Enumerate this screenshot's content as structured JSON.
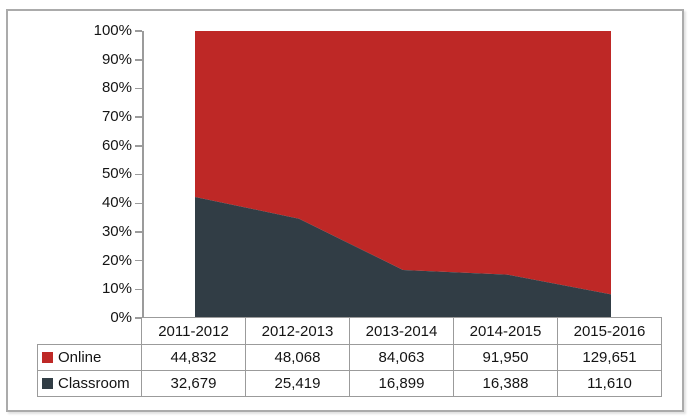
{
  "chart_data": {
    "type": "area",
    "stacked": "percent",
    "title": "",
    "categories": [
      "2011-2012",
      "2012-2013",
      "2013-2014",
      "2014-2015",
      "2015-2016"
    ],
    "series": [
      {
        "name": "Online",
        "color": "#be2826",
        "values": [
          44832,
          48068,
          84063,
          91950,
          129651
        ]
      },
      {
        "name": "Classroom",
        "color": "#313d45",
        "values": [
          32679,
          25419,
          16899,
          16388,
          11610
        ]
      }
    ],
    "classroom_share_pct": [
      42.2,
      34.6,
      16.7,
      15.1,
      8.2
    ],
    "y_axis": {
      "min": "0%",
      "max": "100%",
      "ticks": [
        "100%",
        "90%",
        "80%",
        "70%",
        "60%",
        "50%",
        "40%",
        "30%",
        "20%",
        "10%",
        "0%"
      ]
    },
    "grid": false,
    "legend_position": "left-of-data-table"
  },
  "table": {
    "header": [
      "2011-2012",
      "2012-2013",
      "2013-2014",
      "2014-2015",
      "2015-2016"
    ],
    "rows": [
      {
        "label": "Online",
        "swatch_color": "#be2826",
        "values": [
          "44,832",
          "48,068",
          "84,063",
          "91,950",
          "129,651"
        ]
      },
      {
        "label": "Classroom",
        "swatch_color": "#313d45",
        "values": [
          "32,679",
          "25,419",
          "16,899",
          "16,388",
          "11,610"
        ]
      }
    ]
  },
  "colors": {
    "online": "#be2826",
    "classroom": "#313d45",
    "axis": "#9b9b9b",
    "table_border": "#9b9b9b",
    "frame_border": "#ababab",
    "text": "#141414",
    "background": "#ffffff"
  }
}
